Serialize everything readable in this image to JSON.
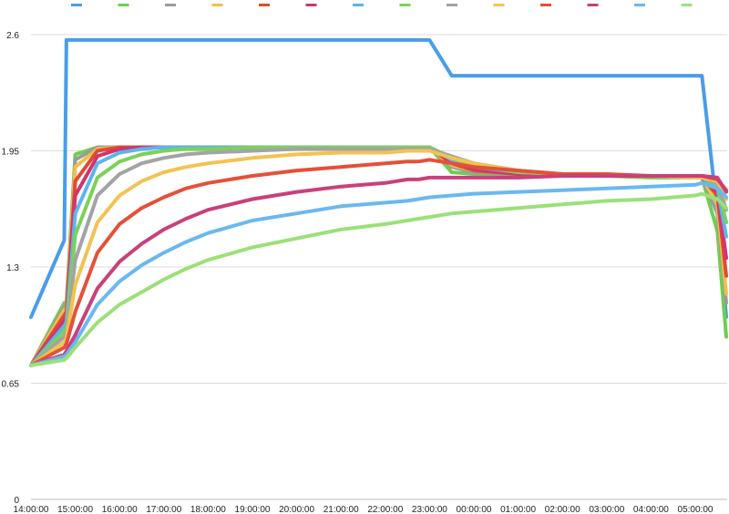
{
  "chart_data": {
    "type": "line",
    "title": "",
    "xlabel": "",
    "ylabel": "",
    "ylim": [
      0,
      2.6
    ],
    "yticks": [
      0,
      0.65,
      1.3,
      1.95,
      2.6
    ],
    "ytick_labels": [
      "0",
      "0.65",
      "1.3",
      "1.95",
      "2.6"
    ],
    "xticks": [
      "14:00:00",
      "15:00:00",
      "16:00:00",
      "17:00:00",
      "18:00:00",
      "19:00:00",
      "20:00:00",
      "21:00:00",
      "22:00:00",
      "23:00:00",
      "00:00:00",
      "01:00:00",
      "02:00:00",
      "03:00:00",
      "04:00:00",
      "05:00:00"
    ],
    "x_hours": [
      0,
      0.75,
      0.8,
      1,
      1.5,
      2,
      2.5,
      3,
      3.5,
      4,
      5,
      6,
      7,
      8,
      8.5,
      8.75,
      9,
      9.5,
      10,
      11,
      12,
      13,
      14,
      15,
      15.15,
      15.5,
      15.7
    ],
    "grid": true,
    "legend": "top",
    "series": [
      {
        "color": "#4a9de8",
        "width": 4,
        "values": [
          1.02,
          1.45,
          2.57,
          2.57,
          2.57,
          2.57,
          2.57,
          2.57,
          2.57,
          2.57,
          2.57,
          2.57,
          2.57,
          2.57,
          2.57,
          2.57,
          2.57,
          2.37,
          2.37,
          2.37,
          2.37,
          2.37,
          2.37,
          2.37,
          2.37,
          1.6,
          1.02
        ]
      },
      {
        "color": "#6dcf4f",
        "width": 4,
        "values": [
          0.75,
          1.1,
          1.1,
          1.93,
          1.97,
          1.97,
          1.97,
          1.97,
          1.97,
          1.97,
          1.97,
          1.97,
          1.97,
          1.97,
          1.97,
          1.97,
          1.97,
          1.83,
          1.82,
          1.82,
          1.81,
          1.81,
          1.8,
          1.8,
          1.8,
          1.5,
          0.91
        ]
      },
      {
        "color": "#9c9c9c",
        "width": 4,
        "values": [
          0.75,
          1.08,
          1.08,
          1.9,
          1.97,
          1.97,
          1.97,
          1.97,
          1.97,
          1.97,
          1.97,
          1.97,
          1.97,
          1.97,
          1.97,
          1.97,
          1.97,
          1.86,
          1.83,
          1.82,
          1.81,
          1.81,
          1.81,
          1.8,
          1.8,
          1.6,
          1.1
        ]
      },
      {
        "color": "#f0c04a",
        "width": 4,
        "values": [
          0.75,
          1.06,
          1.07,
          1.86,
          1.96,
          1.97,
          1.97,
          1.97,
          1.97,
          1.97,
          1.97,
          1.97,
          1.97,
          1.97,
          1.97,
          1.97,
          1.97,
          1.87,
          1.84,
          1.82,
          1.81,
          1.81,
          1.81,
          1.8,
          1.8,
          1.65,
          1.15
        ]
      },
      {
        "color": "#e04a32",
        "width": 4,
        "values": [
          0.75,
          1.03,
          1.05,
          1.78,
          1.95,
          1.97,
          1.97,
          1.97,
          1.97,
          1.97,
          1.97,
          1.97,
          1.97,
          1.97,
          1.97,
          1.97,
          1.97,
          1.88,
          1.84,
          1.82,
          1.81,
          1.81,
          1.81,
          1.8,
          1.8,
          1.7,
          1.25
        ]
      },
      {
        "color": "#d0356e",
        "width": 4,
        "values": [
          0.75,
          1.0,
          1.02,
          1.7,
          1.92,
          1.96,
          1.97,
          1.97,
          1.97,
          1.97,
          1.97,
          1.97,
          1.97,
          1.97,
          1.97,
          1.97,
          1.97,
          1.89,
          1.85,
          1.82,
          1.81,
          1.81,
          1.81,
          1.8,
          1.8,
          1.72,
          1.35
        ]
      },
      {
        "color": "#5db4ee",
        "width": 4,
        "values": [
          0.75,
          0.97,
          0.99,
          1.6,
          1.88,
          1.94,
          1.96,
          1.97,
          1.97,
          1.97,
          1.97,
          1.97,
          1.97,
          1.97,
          1.97,
          1.97,
          1.97,
          1.9,
          1.86,
          1.83,
          1.82,
          1.81,
          1.81,
          1.8,
          1.8,
          1.74,
          1.47
        ]
      },
      {
        "color": "#7ad25a",
        "width": 4,
        "values": [
          0.75,
          0.94,
          0.96,
          1.48,
          1.8,
          1.89,
          1.93,
          1.95,
          1.96,
          1.96,
          1.97,
          1.97,
          1.97,
          1.97,
          1.97,
          1.97,
          1.97,
          1.91,
          1.87,
          1.83,
          1.82,
          1.81,
          1.81,
          1.8,
          1.8,
          1.76,
          1.55
        ]
      },
      {
        "color": "#a3a3a3",
        "width": 4,
        "values": [
          0.75,
          0.91,
          0.93,
          1.34,
          1.7,
          1.82,
          1.88,
          1.91,
          1.93,
          1.94,
          1.95,
          1.96,
          1.96,
          1.96,
          1.96,
          1.96,
          1.96,
          1.92,
          1.88,
          1.84,
          1.82,
          1.81,
          1.81,
          1.8,
          1.8,
          1.77,
          1.62
        ]
      },
      {
        "color": "#f2c352",
        "width": 4,
        "values": [
          0.75,
          0.88,
          0.9,
          1.2,
          1.55,
          1.7,
          1.78,
          1.83,
          1.86,
          1.88,
          1.91,
          1.93,
          1.94,
          1.94,
          1.95,
          1.95,
          1.95,
          1.91,
          1.88,
          1.84,
          1.82,
          1.81,
          1.81,
          1.8,
          1.8,
          1.78,
          1.68
        ]
      },
      {
        "color": "#e55038",
        "width": 4,
        "values": [
          0.75,
          0.85,
          0.87,
          1.05,
          1.38,
          1.54,
          1.63,
          1.69,
          1.74,
          1.77,
          1.81,
          1.84,
          1.86,
          1.88,
          1.89,
          1.89,
          1.9,
          1.88,
          1.86,
          1.84,
          1.82,
          1.82,
          1.81,
          1.81,
          1.81,
          1.79,
          1.73
        ]
      },
      {
        "color": "#c9407a",
        "width": 4,
        "values": [
          0.75,
          0.81,
          0.83,
          0.92,
          1.18,
          1.33,
          1.43,
          1.51,
          1.57,
          1.62,
          1.68,
          1.72,
          1.75,
          1.77,
          1.79,
          1.79,
          1.8,
          1.8,
          1.8,
          1.8,
          1.81,
          1.81,
          1.81,
          1.81,
          1.81,
          1.8,
          1.72
        ]
      },
      {
        "color": "#6ab8f0",
        "width": 4,
        "values": [
          0.75,
          0.8,
          0.81,
          0.88,
          1.09,
          1.22,
          1.31,
          1.38,
          1.44,
          1.49,
          1.56,
          1.6,
          1.64,
          1.66,
          1.67,
          1.68,
          1.69,
          1.7,
          1.71,
          1.72,
          1.73,
          1.74,
          1.75,
          1.76,
          1.77,
          1.74,
          1.69
        ]
      },
      {
        "color": "#9be079",
        "width": 4,
        "values": [
          0.75,
          0.78,
          0.79,
          0.85,
          0.99,
          1.09,
          1.16,
          1.23,
          1.29,
          1.34,
          1.41,
          1.46,
          1.51,
          1.54,
          1.56,
          1.57,
          1.58,
          1.6,
          1.61,
          1.63,
          1.65,
          1.67,
          1.68,
          1.7,
          1.71,
          1.68,
          1.63
        ]
      }
    ]
  }
}
